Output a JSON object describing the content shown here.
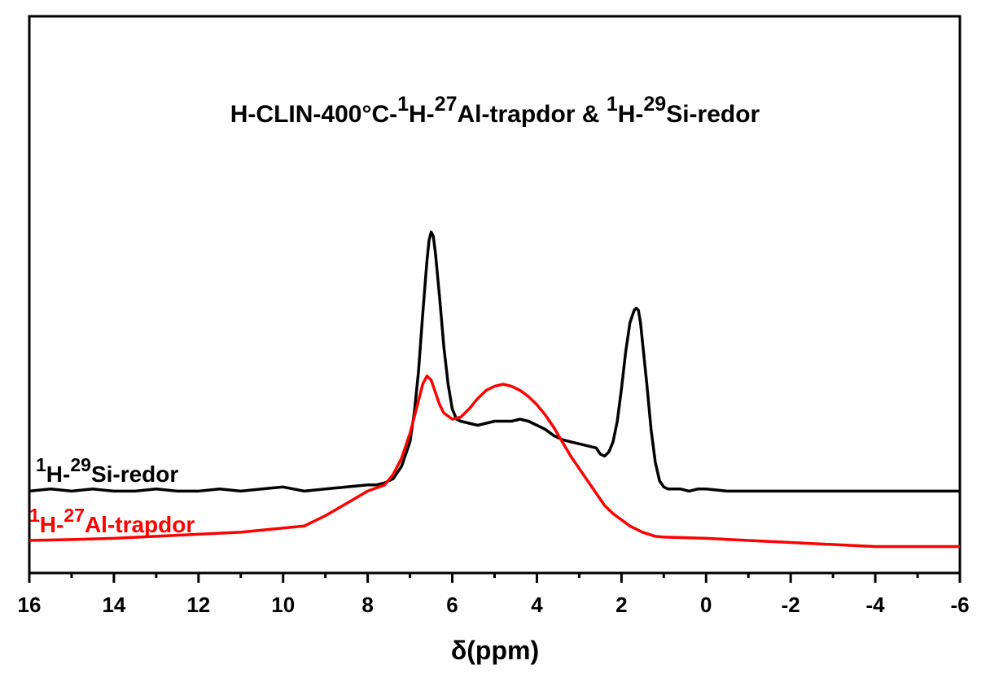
{
  "chart_data": {
    "type": "line",
    "title": {
      "parts": [
        {
          "text": "H-CLIN-400°C-",
          "sup": false
        },
        {
          "text": "1",
          "sup": true
        },
        {
          "text": "H-",
          "sup": false
        },
        {
          "text": "27",
          "sup": true
        },
        {
          "text": "Al-trapdor & ",
          "sup": false
        },
        {
          "text": "1",
          "sup": true
        },
        {
          "text": "H-",
          "sup": false
        },
        {
          "text": "29",
          "sup": true
        },
        {
          "text": "Si-redor",
          "sup": false
        }
      ]
    },
    "xlabel": "δ(ppm)",
    "ylabel": "",
    "xlim": [
      16,
      -6
    ],
    "xticks": [
      16,
      14,
      12,
      10,
      8,
      6,
      4,
      2,
      0,
      -2,
      -4,
      -6
    ],
    "x_reversed": true,
    "y_axis_ticks_shown": false,
    "series": [
      {
        "name_parts": [
          {
            "text": "1",
            "sup": true
          },
          {
            "text": "H-",
            "sup": false
          },
          {
            "text": "29",
            "sup": true
          },
          {
            "text": "Si-redor",
            "sup": false
          }
        ],
        "color": "#000000",
        "x": [
          16,
          15.5,
          15,
          14.5,
          14,
          13.5,
          13,
          12.5,
          12,
          11.5,
          11,
          10.5,
          10,
          9.5,
          9,
          8.5,
          8,
          7.8,
          7.6,
          7.4,
          7.2,
          7.0,
          6.9,
          6.8,
          6.7,
          6.6,
          6.55,
          6.5,
          6.45,
          6.4,
          6.3,
          6.2,
          6.1,
          6.0,
          5.9,
          5.8,
          5.6,
          5.4,
          5.2,
          5.0,
          4.8,
          4.6,
          4.4,
          4.2,
          4.0,
          3.8,
          3.6,
          3.4,
          3.2,
          3.0,
          2.8,
          2.6,
          2.5,
          2.4,
          2.3,
          2.2,
          2.1,
          2.0,
          1.9,
          1.8,
          1.7,
          1.65,
          1.6,
          1.55,
          1.5,
          1.4,
          1.3,
          1.2,
          1.1,
          1.0,
          0.9,
          0.8,
          0.6,
          0.4,
          0.2,
          0,
          -0.5,
          -1,
          -1.5,
          -2,
          -2.5,
          -3,
          -3.5,
          -4,
          -4.5,
          -5,
          -5.5,
          -6
        ],
        "y": [
          1.3,
          1.35,
          1.3,
          1.35,
          1.3,
          1.3,
          1.35,
          1.3,
          1.3,
          1.35,
          1.3,
          1.35,
          1.4,
          1.3,
          1.35,
          1.4,
          1.45,
          1.45,
          1.5,
          1.6,
          1.9,
          2.5,
          3.2,
          4.2,
          5.6,
          6.9,
          7.4,
          7.6,
          7.5,
          7.1,
          6.0,
          4.8,
          3.9,
          3.3,
          3.05,
          3.0,
          2.95,
          2.9,
          2.95,
          3.0,
          3.0,
          3.0,
          3.05,
          3.0,
          2.9,
          2.8,
          2.65,
          2.55,
          2.5,
          2.45,
          2.4,
          2.35,
          2.2,
          2.15,
          2.25,
          2.5,
          3.0,
          3.8,
          4.7,
          5.4,
          5.7,
          5.75,
          5.7,
          5.4,
          4.9,
          3.9,
          2.8,
          2.0,
          1.55,
          1.4,
          1.35,
          1.35,
          1.35,
          1.3,
          1.35,
          1.35,
          1.3,
          1.3,
          1.3,
          1.3,
          1.3,
          1.3,
          1.3,
          1.3,
          1.3,
          1.3,
          1.3,
          1.3
        ]
      },
      {
        "name_parts": [
          {
            "text": "1",
            "sup": true
          },
          {
            "text": "H-",
            "sup": false
          },
          {
            "text": "27",
            "sup": true
          },
          {
            "text": "Al-trapdor",
            "sup": false
          }
        ],
        "color": "#ff0000",
        "x": [
          16,
          15,
          14,
          13,
          12,
          11,
          10,
          9.5,
          9.0,
          8.5,
          8.0,
          7.6,
          7.4,
          7.2,
          7.0,
          6.9,
          6.8,
          6.7,
          6.6,
          6.5,
          6.4,
          6.3,
          6.2,
          6.0,
          5.8,
          5.6,
          5.4,
          5.2,
          5.0,
          4.8,
          4.6,
          4.4,
          4.2,
          4.0,
          3.8,
          3.6,
          3.4,
          3.2,
          3.0,
          2.8,
          2.6,
          2.4,
          2.2,
          2.0,
          1.8,
          1.5,
          1.2,
          1.0,
          0,
          -1,
          -2,
          -3,
          -4,
          -5,
          -6
        ],
        "y": [
          0.1,
          0.12,
          0.15,
          0.2,
          0.25,
          0.3,
          0.4,
          0.45,
          0.7,
          1.0,
          1.3,
          1.45,
          1.7,
          2.1,
          2.7,
          3.1,
          3.5,
          3.9,
          4.1,
          4.0,
          3.7,
          3.4,
          3.2,
          3.05,
          3.1,
          3.3,
          3.55,
          3.75,
          3.85,
          3.9,
          3.85,
          3.75,
          3.6,
          3.4,
          3.15,
          2.85,
          2.5,
          2.15,
          1.85,
          1.55,
          1.25,
          0.95,
          0.75,
          0.6,
          0.45,
          0.3,
          0.2,
          0.18,
          0.15,
          0.1,
          0.05,
          0.0,
          -0.05,
          -0.05,
          -0.05
        ]
      }
    ]
  }
}
